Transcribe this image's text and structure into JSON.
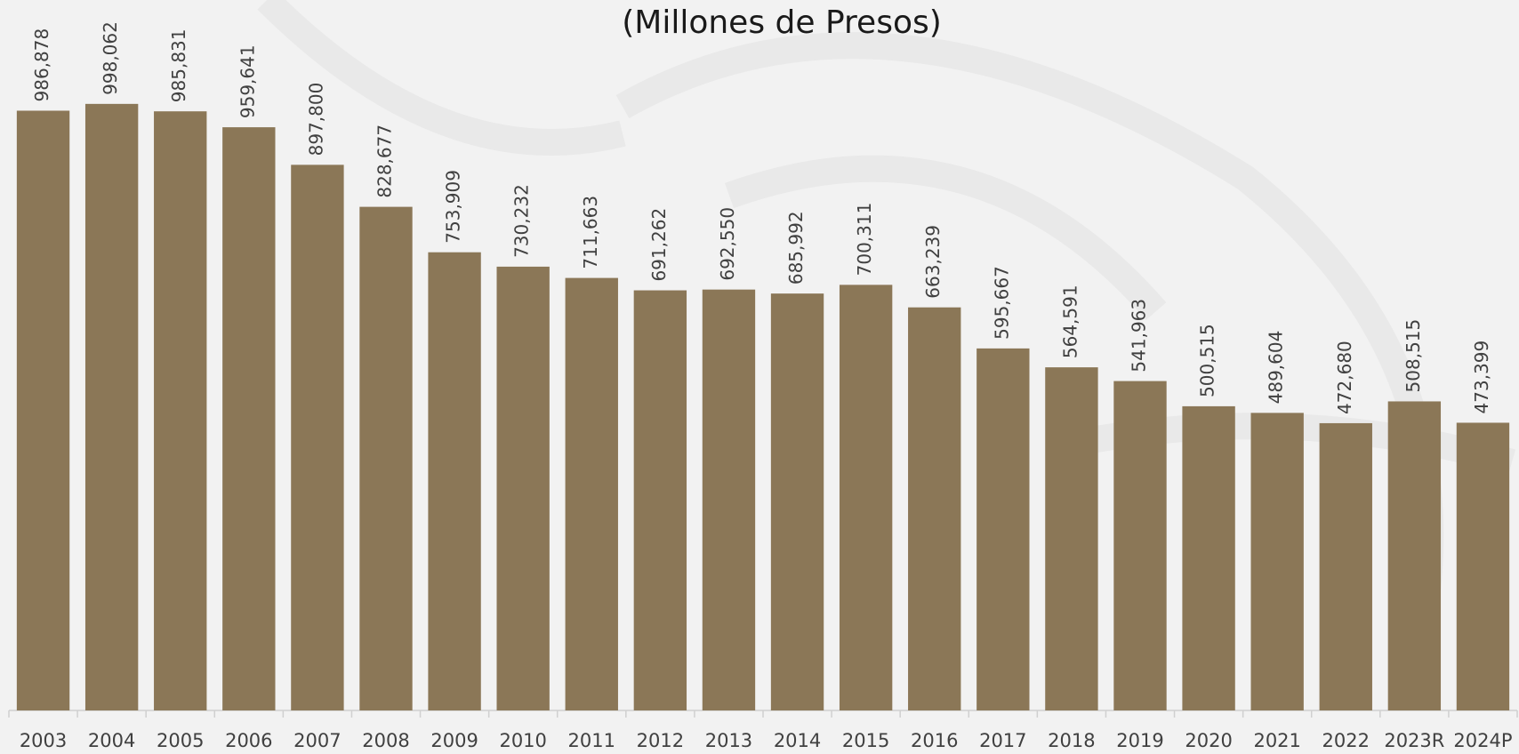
{
  "chart_data": {
    "type": "bar",
    "title": "(Millones de Presos)",
    "categories": [
      "2003",
      "2004",
      "2005",
      "2006",
      "2007",
      "2008",
      "2009",
      "2010",
      "2011",
      "2012",
      "2013",
      "2014",
      "2015",
      "2016",
      "2017",
      "2018",
      "2019",
      "2020",
      "2021",
      "2022",
      "2023R",
      "2024P"
    ],
    "values": [
      986878,
      998062,
      985831,
      959641,
      897800,
      828677,
      753909,
      730232,
      711663,
      691262,
      692550,
      685992,
      700311,
      663239,
      595667,
      564591,
      541963,
      500515,
      489604,
      472680,
      508515,
      473399
    ],
    "value_labels": [
      "986,878",
      "998,062",
      "985,831",
      "959,641",
      "897,800",
      "828,677",
      "753,909",
      "730,232",
      "711,663",
      "691,262",
      "692,550",
      "685,992",
      "700,311",
      "663,239",
      "595,667",
      "564,591",
      "541,963",
      "500,515",
      "489,604",
      "472,680",
      "508,515",
      "473,399"
    ],
    "color": "#8b7757",
    "ylim": [
      0,
      1150000
    ]
  }
}
